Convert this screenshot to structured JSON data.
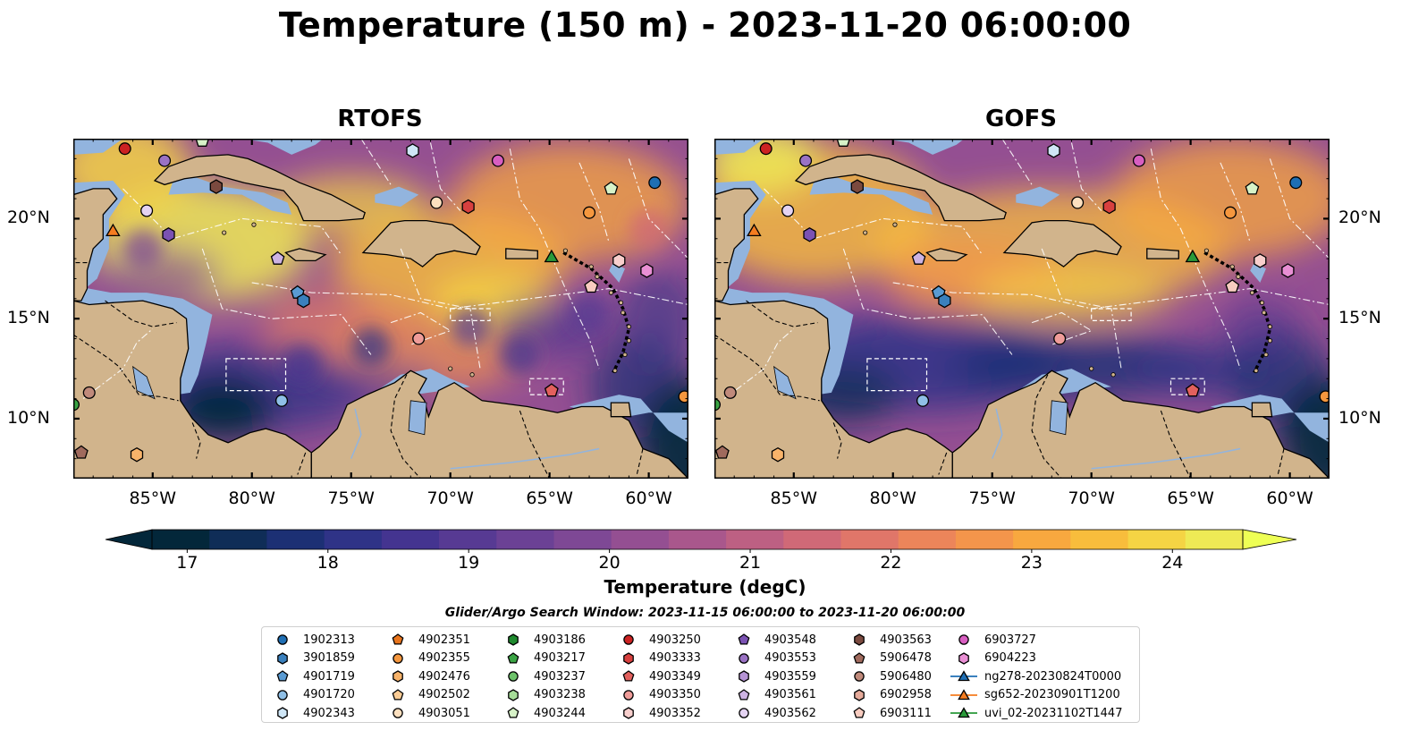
{
  "title": "Temperature (150 m) - 2023-11-20 06:00:00",
  "panels": [
    {
      "title": "RTOFS",
      "variant": "rtofs"
    },
    {
      "title": "GOFS",
      "variant": "gofs"
    }
  ],
  "lon_ticks": [
    "85°W",
    "80°W",
    "75°W",
    "70°W",
    "65°W",
    "60°W"
  ],
  "lat_ticks": [
    "20°N",
    "15°N",
    "10°N"
  ],
  "map_extent": {
    "lon": [
      -89,
      -58
    ],
    "lat": [
      7,
      24
    ]
  },
  "colorbar": {
    "label": "Temperature (degC)",
    "ticks": [
      "17",
      "18",
      "19",
      "20",
      "21",
      "22",
      "23",
      "24"
    ],
    "range": [
      16.75,
      24.5
    ],
    "colors": [
      "#03273a",
      "#0f2d57",
      "#1c3074",
      "#2f3387",
      "#443490",
      "#573a93",
      "#6b4195",
      "#7e4895",
      "#944f92",
      "#a9578c",
      "#bd6083",
      "#d06977",
      "#e07669",
      "#ec855a",
      "#f4954b",
      "#f8a83f",
      "#f8bd3c",
      "#f5d444",
      "#eeea55"
    ],
    "extend": "both"
  },
  "legend": {
    "title": "Glider/Argo Search Window: 2023-11-15 06:00:00 to 2023-11-20 06:00:00",
    "columns": [
      [
        {
          "label": "1902313",
          "marker": "circle",
          "color": "#1f6fb4"
        },
        {
          "label": "3901859",
          "marker": "hexagon",
          "color": "#3a80bd"
        },
        {
          "label": "4901719",
          "marker": "pentagon",
          "color": "#5a9bd3"
        },
        {
          "label": "4901720",
          "marker": "circle",
          "color": "#8fbfe6"
        },
        {
          "label": "4902343",
          "marker": "hexagon",
          "color": "#cfe6f6"
        }
      ],
      [
        {
          "label": "4902351",
          "marker": "pentagon",
          "color": "#e8741c"
        },
        {
          "label": "4902355",
          "marker": "circle",
          "color": "#f5973e"
        },
        {
          "label": "4902476",
          "marker": "hexagon",
          "color": "#f8b36a"
        },
        {
          "label": "4902502",
          "marker": "pentagon",
          "color": "#fbcc95"
        },
        {
          "label": "4903051",
          "marker": "circle",
          "color": "#fde0bf"
        }
      ],
      [
        {
          "label": "4903186",
          "marker": "hexagon",
          "color": "#1f8a2e"
        },
        {
          "label": "4903217",
          "marker": "pentagon",
          "color": "#3aa444"
        },
        {
          "label": "4903237",
          "marker": "circle",
          "color": "#6dc26a"
        },
        {
          "label": "4903238",
          "marker": "hexagon",
          "color": "#a6dc98"
        },
        {
          "label": "4903244",
          "marker": "pentagon",
          "color": "#d7f2c8"
        }
      ],
      [
        {
          "label": "4903250",
          "marker": "circle",
          "color": "#cc2222"
        },
        {
          "label": "4903333",
          "marker": "hexagon",
          "color": "#d8403f"
        },
        {
          "label": "4903349",
          "marker": "pentagon",
          "color": "#e2605d"
        },
        {
          "label": "4903350",
          "marker": "circle",
          "color": "#ef9c99"
        },
        {
          "label": "4903352",
          "marker": "hexagon",
          "color": "#f8cfcd"
        }
      ],
      [
        {
          "label": "4903548",
          "marker": "pentagon",
          "color": "#7b52b3"
        },
        {
          "label": "4903553",
          "marker": "circle",
          "color": "#9a72c4"
        },
        {
          "label": "4903559",
          "marker": "hexagon",
          "color": "#b593d4"
        },
        {
          "label": "4903561",
          "marker": "pentagon",
          "color": "#cdb3e3"
        },
        {
          "label": "4903562",
          "marker": "circle",
          "color": "#e4d3f2"
        }
      ],
      [
        {
          "label": "4903563",
          "marker": "hexagon",
          "color": "#7b4a3f"
        },
        {
          "label": "5906478",
          "marker": "pentagon",
          "color": "#a06a5d"
        },
        {
          "label": "5906480",
          "marker": "circle",
          "color": "#c08a7b"
        },
        {
          "label": "6902958",
          "marker": "hexagon",
          "color": "#e5aa9a"
        },
        {
          "label": "6903111",
          "marker": "pentagon",
          "color": "#f8ccc0"
        }
      ],
      [
        {
          "label": "6903727",
          "marker": "circle",
          "color": "#d85ec1"
        },
        {
          "label": "6904223",
          "marker": "hexagon",
          "color": "#e98fd4"
        },
        {
          "label": "ng278-20230824T0000",
          "marker": "triangle-line",
          "color": "#1f6fb4"
        },
        {
          "label": "sg652-20230901T1200",
          "marker": "triangle-line",
          "color": "#f57c1f"
        },
        {
          "label": "uvi_02-20231102T1447",
          "marker": "triangle-line",
          "color": "#2a9a3a"
        }
      ]
    ]
  },
  "platforms": [
    {
      "lon": -86.4,
      "lat": 23.5,
      "marker": "circle",
      "color": "#cc2222"
    },
    {
      "lon": -84.4,
      "lat": 22.9,
      "marker": "circle",
      "color": "#9a72c4"
    },
    {
      "lon": -82.5,
      "lat": 23.9,
      "marker": "pentagon",
      "color": "#d7f2c8"
    },
    {
      "lon": -81.8,
      "lat": 21.6,
      "marker": "hexagon",
      "color": "#7b4a3f"
    },
    {
      "lon": -71.9,
      "lat": 23.4,
      "marker": "hexagon",
      "color": "#cfe6f6"
    },
    {
      "lon": -67.6,
      "lat": 22.9,
      "marker": "circle",
      "color": "#d85ec1"
    },
    {
      "lon": -59.7,
      "lat": 21.8,
      "marker": "circle",
      "color": "#1f6fb4"
    },
    {
      "lon": -85.3,
      "lat": 20.4,
      "marker": "circle",
      "color": "#e4d3f2"
    },
    {
      "lon": -84.2,
      "lat": 19.2,
      "marker": "hexagon",
      "color": "#7b52b3"
    },
    {
      "lon": -87.0,
      "lat": 19.4,
      "marker": "triangle",
      "color": "#f57c1f"
    },
    {
      "lon": -70.7,
      "lat": 20.8,
      "marker": "circle",
      "color": "#fde0bf"
    },
    {
      "lon": -69.1,
      "lat": 20.6,
      "marker": "hexagon",
      "color": "#d8403f"
    },
    {
      "lon": -63.0,
      "lat": 20.3,
      "marker": "circle",
      "color": "#f5973e"
    },
    {
      "lon": -61.9,
      "lat": 21.5,
      "marker": "pentagon",
      "color": "#d7f2c8"
    },
    {
      "lon": -78.7,
      "lat": 18.0,
      "marker": "pentagon",
      "color": "#cdb3e3"
    },
    {
      "lon": -77.7,
      "lat": 16.3,
      "marker": "pentagon",
      "color": "#5a9bd3"
    },
    {
      "lon": -77.4,
      "lat": 15.9,
      "marker": "hexagon",
      "color": "#3a80bd"
    },
    {
      "lon": -64.9,
      "lat": 18.1,
      "marker": "triangle",
      "color": "#2a9a3a"
    },
    {
      "lon": -61.5,
      "lat": 17.9,
      "marker": "hexagon",
      "color": "#f8cfcd"
    },
    {
      "lon": -60.1,
      "lat": 17.4,
      "marker": "hexagon",
      "color": "#e98fd4"
    },
    {
      "lon": -62.9,
      "lat": 16.6,
      "marker": "pentagon",
      "color": "#f8ccc0"
    },
    {
      "lon": -71.6,
      "lat": 14.0,
      "marker": "circle",
      "color": "#ef9c99"
    },
    {
      "lon": -78.5,
      "lat": 10.9,
      "marker": "circle",
      "color": "#8fbfe6"
    },
    {
      "lon": -64.9,
      "lat": 11.4,
      "marker": "pentagon",
      "color": "#e2605d"
    },
    {
      "lon": -58.2,
      "lat": 11.1,
      "marker": "circle",
      "color": "#f5973e"
    },
    {
      "lon": -88.2,
      "lat": 11.3,
      "marker": "circle",
      "color": "#c08a7b"
    },
    {
      "lon": -89.0,
      "lat": 10.7,
      "marker": "circle",
      "color": "#3aa444"
    },
    {
      "lon": -88.6,
      "lat": 8.3,
      "marker": "pentagon",
      "color": "#a06a5d"
    },
    {
      "lon": -85.8,
      "lat": 8.2,
      "marker": "hexagon",
      "color": "#f8b36a"
    }
  ]
}
